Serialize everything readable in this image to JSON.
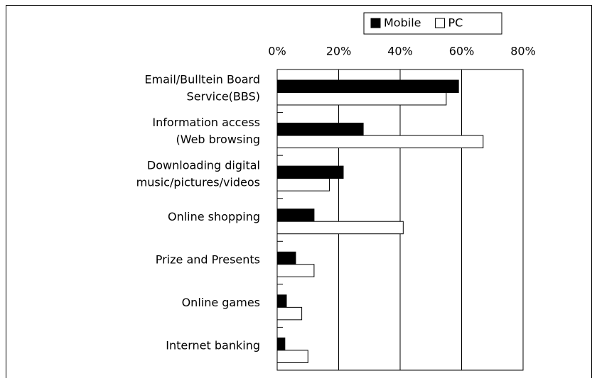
{
  "chart_data": {
    "type": "bar",
    "orientation": "horizontal",
    "categories": [
      "Email/Bulltein Board\nService(BBS)",
      "Information  access\n(Web browsing",
      "Downloading digital\nmusic/pictures/videos",
      "Online shopping",
      "Prize and Presents",
      "Online games",
      "Internet banking"
    ],
    "series": [
      {
        "name": "Mobile",
        "color": "#000000",
        "values": [
          59,
          28,
          21.5,
          12,
          6,
          3,
          2.5
        ]
      },
      {
        "name": "PC",
        "color": "#ffffff",
        "values": [
          55,
          67,
          17,
          41,
          12,
          8,
          10
        ]
      }
    ],
    "xlim": [
      0,
      80
    ],
    "xticks": [
      {
        "value": 0,
        "label": "0%"
      },
      {
        "value": 20,
        "label": "20%"
      },
      {
        "value": 40,
        "label": "40%"
      },
      {
        "value": 60,
        "label": "60%"
      },
      {
        "value": 80,
        "label": "80%"
      }
    ],
    "grid": true,
    "legend": "top-right"
  }
}
